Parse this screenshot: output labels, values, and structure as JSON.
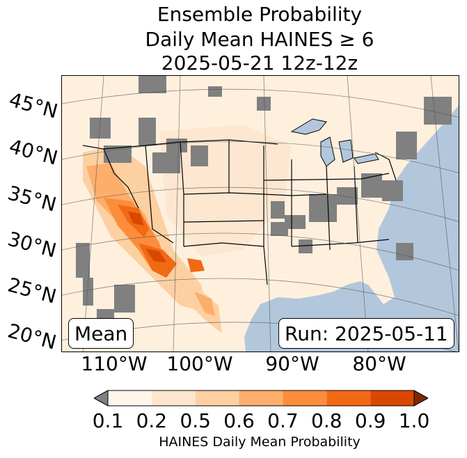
{
  "title": {
    "line1": "Ensemble Probability",
    "line2": "Daily Mean HAINES ≥ 6",
    "line3": "2025-05-21 12z-12z"
  },
  "map": {
    "lat_labels": [
      "45°N",
      "40°N",
      "35°N",
      "30°N",
      "25°N",
      "20°N"
    ],
    "lon_labels": [
      "110°W",
      "100°W",
      "90°W",
      "80°W"
    ],
    "left_box": "Mean",
    "right_box": "Run: 2025-05-11",
    "colors": {
      "ocean": "#b3c7dc",
      "land_low": "#fff5eb",
      "missing": "#808080"
    }
  },
  "colorbar": {
    "tick_labels": [
      "0.1",
      "0.2",
      "0.5",
      "0.6",
      "0.7",
      "0.8",
      "0.9",
      "1.0"
    ],
    "colors": [
      "#fff5eb",
      "#fee6ce",
      "#fdd0a2",
      "#fdae6b",
      "#fd8d3c",
      "#f16913",
      "#d94801",
      "#7f2704"
    ],
    "under_color": "#808080",
    "label": "HAINES Daily Mean Probability"
  }
}
